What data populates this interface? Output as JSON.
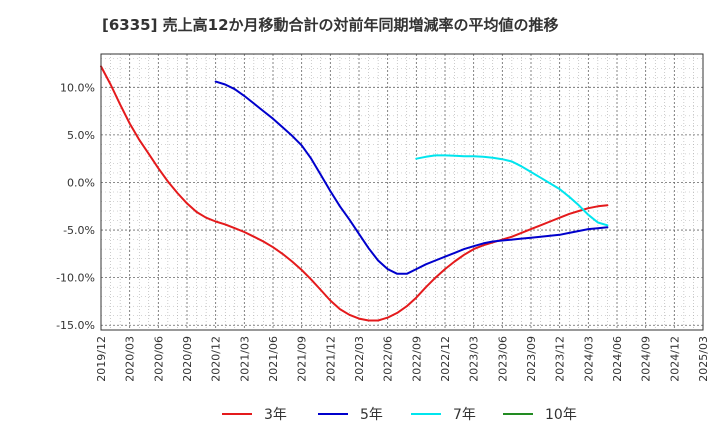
{
  "chart_data": {
    "type": "line",
    "title": "[6335]  売上高12か月移動合計の対前年同期増減率の平均値の推移",
    "xlabel": "",
    "ylabel": "",
    "ylim": [
      -15.5,
      13.5
    ],
    "y_ticks": [
      10,
      5,
      0,
      -5,
      -10,
      -15
    ],
    "y_tick_labels": [
      "10.0%",
      "5.0%",
      "0.0%",
      "-5.0%",
      "-10.0%",
      "-15.0%"
    ],
    "x_tick_labels": [
      "2019/12",
      "2020/03",
      "2020/06",
      "2020/09",
      "2020/12",
      "2021/03",
      "2021/06",
      "2021/09",
      "2021/12",
      "2022/03",
      "2022/06",
      "2022/09",
      "2022/12",
      "2023/03",
      "2023/06",
      "2023/09",
      "2023/12",
      "2024/03",
      "2024/06",
      "2024/09",
      "2024/12",
      "2025/03"
    ],
    "grid": true,
    "legend_position": "bottom",
    "series": [
      {
        "name": "3年",
        "color": "#e41a1c",
        "points": [
          [
            0,
            12.2
          ],
          [
            1,
            10.3
          ],
          [
            2,
            8.2
          ],
          [
            3,
            6.2
          ],
          [
            4,
            4.5
          ],
          [
            5,
            3.0
          ],
          [
            6,
            1.5
          ],
          [
            7,
            0.1
          ],
          [
            8,
            -1.1
          ],
          [
            9,
            -2.2
          ],
          [
            10,
            -3.1
          ],
          [
            11,
            -3.7
          ],
          [
            12,
            -4.1
          ],
          [
            13,
            -4.4
          ],
          [
            14,
            -4.8
          ],
          [
            15,
            -5.2
          ],
          [
            16,
            -5.7
          ],
          [
            17,
            -6.2
          ],
          [
            18,
            -6.8
          ],
          [
            19,
            -7.5
          ],
          [
            20,
            -8.3
          ],
          [
            21,
            -9.2
          ],
          [
            22,
            -10.2
          ],
          [
            23,
            -11.3
          ],
          [
            24,
            -12.4
          ],
          [
            25,
            -13.3
          ],
          [
            26,
            -13.9
          ],
          [
            27,
            -14.3
          ],
          [
            28,
            -14.5
          ],
          [
            29,
            -14.5
          ],
          [
            30,
            -14.2
          ],
          [
            31,
            -13.7
          ],
          [
            32,
            -13.0
          ],
          [
            33,
            -12.1
          ],
          [
            34,
            -11.0
          ],
          [
            35,
            -10.0
          ],
          [
            36,
            -9.1
          ],
          [
            37,
            -8.3
          ],
          [
            38,
            -7.6
          ],
          [
            39,
            -7.0
          ],
          [
            40,
            -6.6
          ],
          [
            41,
            -6.3
          ],
          [
            42,
            -6.0
          ],
          [
            43,
            -5.7
          ],
          [
            44,
            -5.3
          ],
          [
            45,
            -4.9
          ],
          [
            46,
            -4.5
          ],
          [
            47,
            -4.1
          ],
          [
            48,
            -3.7
          ],
          [
            49,
            -3.3
          ],
          [
            50,
            -3.0
          ],
          [
            51,
            -2.7
          ],
          [
            52,
            -2.5
          ],
          [
            53,
            -2.4
          ]
        ]
      },
      {
        "name": "5年",
        "color": "#0000cc",
        "points": [
          [
            12,
            10.6
          ],
          [
            13,
            10.3
          ],
          [
            14,
            9.8
          ],
          [
            15,
            9.1
          ],
          [
            16,
            8.3
          ],
          [
            17,
            7.5
          ],
          [
            18,
            6.7
          ],
          [
            19,
            5.8
          ],
          [
            20,
            4.9
          ],
          [
            21,
            3.9
          ],
          [
            22,
            2.5
          ],
          [
            23,
            0.8
          ],
          [
            24,
            -0.9
          ],
          [
            25,
            -2.5
          ],
          [
            26,
            -3.9
          ],
          [
            27,
            -5.4
          ],
          [
            28,
            -6.9
          ],
          [
            29,
            -8.2
          ],
          [
            30,
            -9.1
          ],
          [
            31,
            -9.6
          ],
          [
            32,
            -9.6
          ],
          [
            33,
            -9.1
          ],
          [
            34,
            -8.6
          ],
          [
            35,
            -8.2
          ],
          [
            36,
            -7.8
          ],
          [
            37,
            -7.4
          ],
          [
            38,
            -7.0
          ],
          [
            39,
            -6.7
          ],
          [
            40,
            -6.4
          ],
          [
            41,
            -6.2
          ],
          [
            42,
            -6.1
          ],
          [
            43,
            -6.0
          ],
          [
            44,
            -5.9
          ],
          [
            45,
            -5.8
          ],
          [
            46,
            -5.7
          ],
          [
            47,
            -5.6
          ],
          [
            48,
            -5.5
          ],
          [
            49,
            -5.3
          ],
          [
            50,
            -5.1
          ],
          [
            51,
            -4.9
          ],
          [
            52,
            -4.8
          ],
          [
            53,
            -4.7
          ]
        ]
      },
      {
        "name": "7年",
        "color": "#00e5ee",
        "points": [
          [
            33,
            2.5
          ],
          [
            34,
            2.7
          ],
          [
            35,
            2.85
          ],
          [
            36,
            2.85
          ],
          [
            37,
            2.8
          ],
          [
            38,
            2.75
          ],
          [
            39,
            2.75
          ],
          [
            40,
            2.7
          ],
          [
            41,
            2.6
          ],
          [
            42,
            2.45
          ],
          [
            43,
            2.2
          ],
          [
            44,
            1.7
          ],
          [
            45,
            1.1
          ],
          [
            46,
            0.5
          ],
          [
            47,
            -0.1
          ],
          [
            48,
            -0.7
          ],
          [
            49,
            -1.5
          ],
          [
            50,
            -2.4
          ],
          [
            51,
            -3.4
          ],
          [
            52,
            -4.2
          ],
          [
            53,
            -4.5
          ]
        ]
      },
      {
        "name": "10年",
        "color": "#228b22",
        "points": []
      }
    ]
  }
}
